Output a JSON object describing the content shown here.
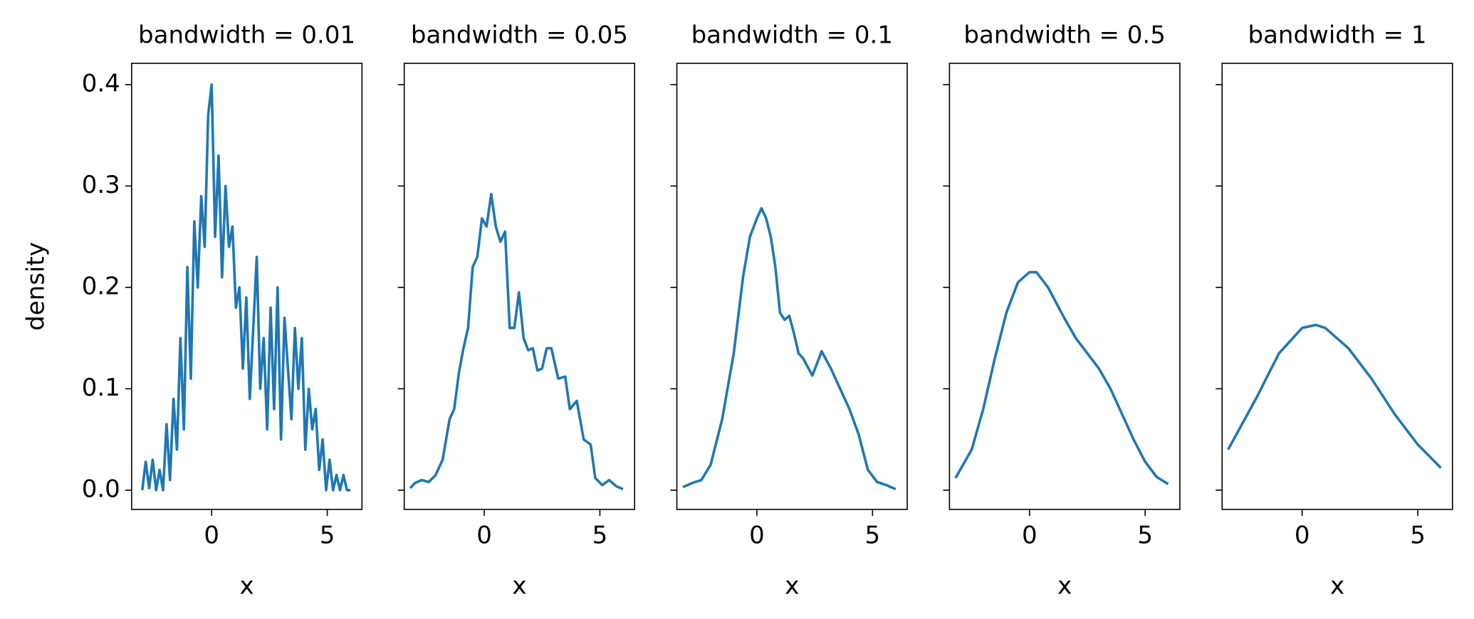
{
  "chart_data": [
    {
      "type": "line",
      "title": "bandwidth = 0.01",
      "x_label": "x",
      "y_label": "density",
      "color": "#1f77b4",
      "x": [
        -3,
        -2.85,
        -2.7,
        -2.55,
        -2.4,
        -2.25,
        -2.1,
        -1.95,
        -1.8,
        -1.65,
        -1.5,
        -1.35,
        -1.2,
        -1.05,
        -0.9,
        -0.75,
        -0.6,
        -0.45,
        -0.3,
        -0.15,
        0,
        0.15,
        0.3,
        0.45,
        0.6,
        0.75,
        0.9,
        1.05,
        1.2,
        1.35,
        1.5,
        1.65,
        1.8,
        1.95,
        2.1,
        2.25,
        2.4,
        2.55,
        2.7,
        2.85,
        3,
        3.15,
        3.3,
        3.45,
        3.6,
        3.75,
        3.9,
        4.05,
        4.2,
        4.35,
        4.5,
        4.65,
        4.8,
        4.95,
        5.1,
        5.25,
        5.4,
        5.55,
        5.7,
        5.85,
        6
      ],
      "values": [
        0,
        0.028,
        0.002,
        0.03,
        0,
        0.02,
        0,
        0.065,
        0.01,
        0.09,
        0.04,
        0.15,
        0.06,
        0.22,
        0.11,
        0.265,
        0.2,
        0.29,
        0.24,
        0.37,
        0.4,
        0.25,
        0.33,
        0.21,
        0.3,
        0.24,
        0.26,
        0.18,
        0.2,
        0.12,
        0.19,
        0.09,
        0.16,
        0.23,
        0.1,
        0.15,
        0.06,
        0.18,
        0.08,
        0.2,
        0.05,
        0.17,
        0.12,
        0.07,
        0.16,
        0.1,
        0.15,
        0.04,
        0.1,
        0.06,
        0.08,
        0.02,
        0.05,
        0,
        0.03,
        0,
        0.015,
        0,
        0.015,
        0,
        0
      ],
      "xlim": [
        -3.46,
        6.5
      ],
      "xticks": [
        0,
        5
      ],
      "ylim": [
        -0.019,
        0.421
      ],
      "yticks": [
        {
          "value": 0,
          "label": "0.0"
        },
        0.1,
        0.2,
        0.3,
        0.4
      ]
    },
    {
      "type": "line",
      "title": "bandwidth = 0.05",
      "x_label": "x",
      "color": "#1f77b4",
      "x": [
        -3.2,
        -3,
        -2.7,
        -2.4,
        -2.1,
        -1.8,
        -1.5,
        -1.3,
        -1.1,
        -0.9,
        -0.7,
        -0.5,
        -0.3,
        -0.1,
        0.1,
        0.3,
        0.5,
        0.7,
        0.9,
        1.1,
        1.3,
        1.5,
        1.7,
        1.9,
        2.1,
        2.3,
        2.5,
        2.7,
        2.9,
        3.2,
        3.5,
        3.7,
        4,
        4.3,
        4.6,
        4.8,
        5.1,
        5.4,
        5.7,
        6
      ],
      "values": [
        0.002,
        0.007,
        0.01,
        0.008,
        0.015,
        0.03,
        0.07,
        0.08,
        0.115,
        0.14,
        0.16,
        0.22,
        0.23,
        0.268,
        0.26,
        0.292,
        0.26,
        0.245,
        0.255,
        0.16,
        0.16,
        0.195,
        0.15,
        0.138,
        0.14,
        0.118,
        0.12,
        0.14,
        0.14,
        0.11,
        0.112,
        0.08,
        0.088,
        0.05,
        0.045,
        0.012,
        0.005,
        0.01,
        0.004,
        0.001
      ],
      "xlim": [
        -3.46,
        6.5
      ],
      "xticks": [
        0,
        5
      ],
      "ylim": [
        -0.019,
        0.421
      ],
      "yticks": [
        0,
        0.1,
        0.2,
        0.3,
        0.4
      ]
    },
    {
      "type": "line",
      "title": "bandwidth = 0.1",
      "x_label": "x",
      "color": "#1f77b4",
      "x": [
        -3.2,
        -2.8,
        -2.4,
        -2,
        -1.5,
        -1,
        -0.6,
        -0.3,
        0,
        0.2,
        0.4,
        0.6,
        0.8,
        1,
        1.2,
        1.4,
        1.6,
        1.8,
        2,
        2.4,
        2.8,
        3.2,
        3.6,
        4,
        4.4,
        4.8,
        5.2,
        5.6,
        6
      ],
      "values": [
        0.003,
        0.007,
        0.01,
        0.025,
        0.07,
        0.135,
        0.21,
        0.25,
        0.268,
        0.278,
        0.268,
        0.25,
        0.22,
        0.175,
        0.168,
        0.172,
        0.155,
        0.135,
        0.13,
        0.113,
        0.137,
        0.12,
        0.1,
        0.08,
        0.055,
        0.02,
        0.008,
        0.005,
        0.001
      ],
      "xlim": [
        -3.46,
        6.5
      ],
      "xticks": [
        0,
        5
      ],
      "ylim": [
        -0.019,
        0.421
      ],
      "yticks": [
        0,
        0.1,
        0.2,
        0.3,
        0.4
      ]
    },
    {
      "type": "line",
      "title": "bandwidth = 0.5",
      "x_label": "x",
      "color": "#1f77b4",
      "x": [
        -3.2,
        -2.5,
        -2,
        -1.5,
        -1,
        -0.5,
        0,
        0.3,
        0.8,
        1.5,
        2,
        2.5,
        3,
        3.5,
        4,
        4.5,
        5,
        5.5,
        6
      ],
      "values": [
        0.012,
        0.04,
        0.08,
        0.13,
        0.175,
        0.205,
        0.215,
        0.215,
        0.2,
        0.17,
        0.15,
        0.135,
        0.12,
        0.1,
        0.075,
        0.05,
        0.028,
        0.013,
        0.006
      ],
      "xlim": [
        -3.46,
        6.5
      ],
      "xticks": [
        0,
        5
      ],
      "ylim": [
        -0.019,
        0.421
      ],
      "yticks": [
        0,
        0.1,
        0.2,
        0.3,
        0.4
      ]
    },
    {
      "type": "line",
      "title": "bandwidth = 1",
      "x_label": "x",
      "color": "#1f77b4",
      "x": [
        -3.2,
        -2,
        -1,
        0,
        0.6,
        1,
        2,
        3,
        4,
        5,
        6
      ],
      "values": [
        0.04,
        0.09,
        0.135,
        0.16,
        0.163,
        0.16,
        0.14,
        0.11,
        0.075,
        0.045,
        0.022
      ],
      "xlim": [
        -3.46,
        6.5
      ],
      "xticks": [
        0,
        5
      ],
      "ylim": [
        -0.019,
        0.421
      ],
      "yticks": [
        0,
        0.1,
        0.2,
        0.3,
        0.4
      ]
    }
  ]
}
